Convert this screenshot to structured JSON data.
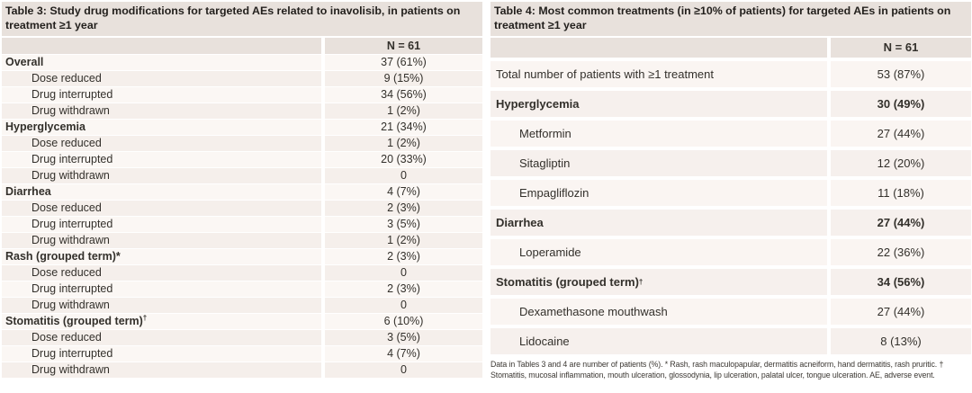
{
  "table3": {
    "title": "Table 3: Study drug modifications for targeted AEs related to inavolisib, in patients on treatment ≥1 year",
    "col_header": "N = 61",
    "rows": [
      {
        "label": "Overall",
        "value": "37 (61%)",
        "bold": true
      },
      {
        "label": "Dose reduced",
        "value": "9 (15%)",
        "indent": true
      },
      {
        "label": "Drug interrupted",
        "value": "34 (56%)",
        "indent": true
      },
      {
        "label": "Drug withdrawn",
        "value": "1 (2%)",
        "indent": true
      },
      {
        "label": "Hyperglycemia",
        "value": "21 (34%)",
        "bold": true
      },
      {
        "label": "Dose reduced",
        "value": "1 (2%)",
        "indent": true
      },
      {
        "label": "Drug interrupted",
        "value": "20 (33%)",
        "indent": true
      },
      {
        "label": "Drug withdrawn",
        "value": "0",
        "indent": true
      },
      {
        "label": "Diarrhea",
        "value": "4 (7%)",
        "bold": true
      },
      {
        "label": "Dose reduced",
        "value": "2 (3%)",
        "indent": true
      },
      {
        "label": "Drug interrupted",
        "value": "3 (5%)",
        "indent": true
      },
      {
        "label": "Drug withdrawn",
        "value": "1 (2%)",
        "indent": true
      },
      {
        "label": "Rash (grouped term)*",
        "value": "2 (3%)",
        "bold": true
      },
      {
        "label": "Dose reduced",
        "value": "0",
        "indent": true
      },
      {
        "label": "Drug interrupted",
        "value": "2 (3%)",
        "indent": true
      },
      {
        "label": "Drug withdrawn",
        "value": "0",
        "indent": true
      },
      {
        "label": "Stomatitis (grouped term)",
        "sup": "†",
        "value": "6 (10%)",
        "bold": true
      },
      {
        "label": "Dose reduced",
        "value": "3 (5%)",
        "indent": true
      },
      {
        "label": "Drug interrupted",
        "value": "4 (7%)",
        "indent": true
      },
      {
        "label": "Drug withdrawn",
        "value": "0",
        "indent": true
      }
    ]
  },
  "table4": {
    "title": "Table 4: Most common treatments (in ≥10% of patients) for targeted AEs in patients on treatment ≥1 year",
    "col_header": "N = 61",
    "rows": [
      {
        "label": "Total number of patients with ≥1 treatment",
        "value": "53 (87%)"
      },
      {
        "label": "Hyperglycemia",
        "value": "30 (49%)",
        "bold": true
      },
      {
        "label": "Metformin",
        "value": "27 (44%)",
        "indent": true
      },
      {
        "label": "Sitagliptin",
        "value": "12 (20%)",
        "indent": true
      },
      {
        "label": "Empagliflozin",
        "value": "11 (18%)",
        "indent": true
      },
      {
        "label": "Diarrhea",
        "value": "27 (44%)",
        "bold": true
      },
      {
        "label": "Loperamide",
        "value": "22 (36%)",
        "indent": true
      },
      {
        "label": "Stomatitis (grouped term)",
        "sup": "†",
        "value": "34 (56%)",
        "bold": true
      },
      {
        "label": "Dexamethasone mouthwash",
        "value": "27 (44%)",
        "indent": true
      },
      {
        "label": "Lidocaine",
        "value": "8 (13%)",
        "indent": true
      }
    ]
  },
  "footnote": "Data in Tables 3 and 4 are number of patients (%). * Rash, rash maculopapular, dermatitis acneiform, hand dermatitis, rash pruritic. † Stomatitis, mucosal inflammation, mouth ulceration, glossodynia, lip ulceration, palatal ulcer, tongue ulceration. AE, adverse event.",
  "colors": {
    "header_bg": "#e8e1dc",
    "row_light": "#fbf7f4",
    "row_dark": "#f5efeb",
    "row_t4_light": "#faf5f2",
    "row_t4_dark": "#f6f0ed",
    "text": "#33302b",
    "title_text": "#221f1c"
  }
}
